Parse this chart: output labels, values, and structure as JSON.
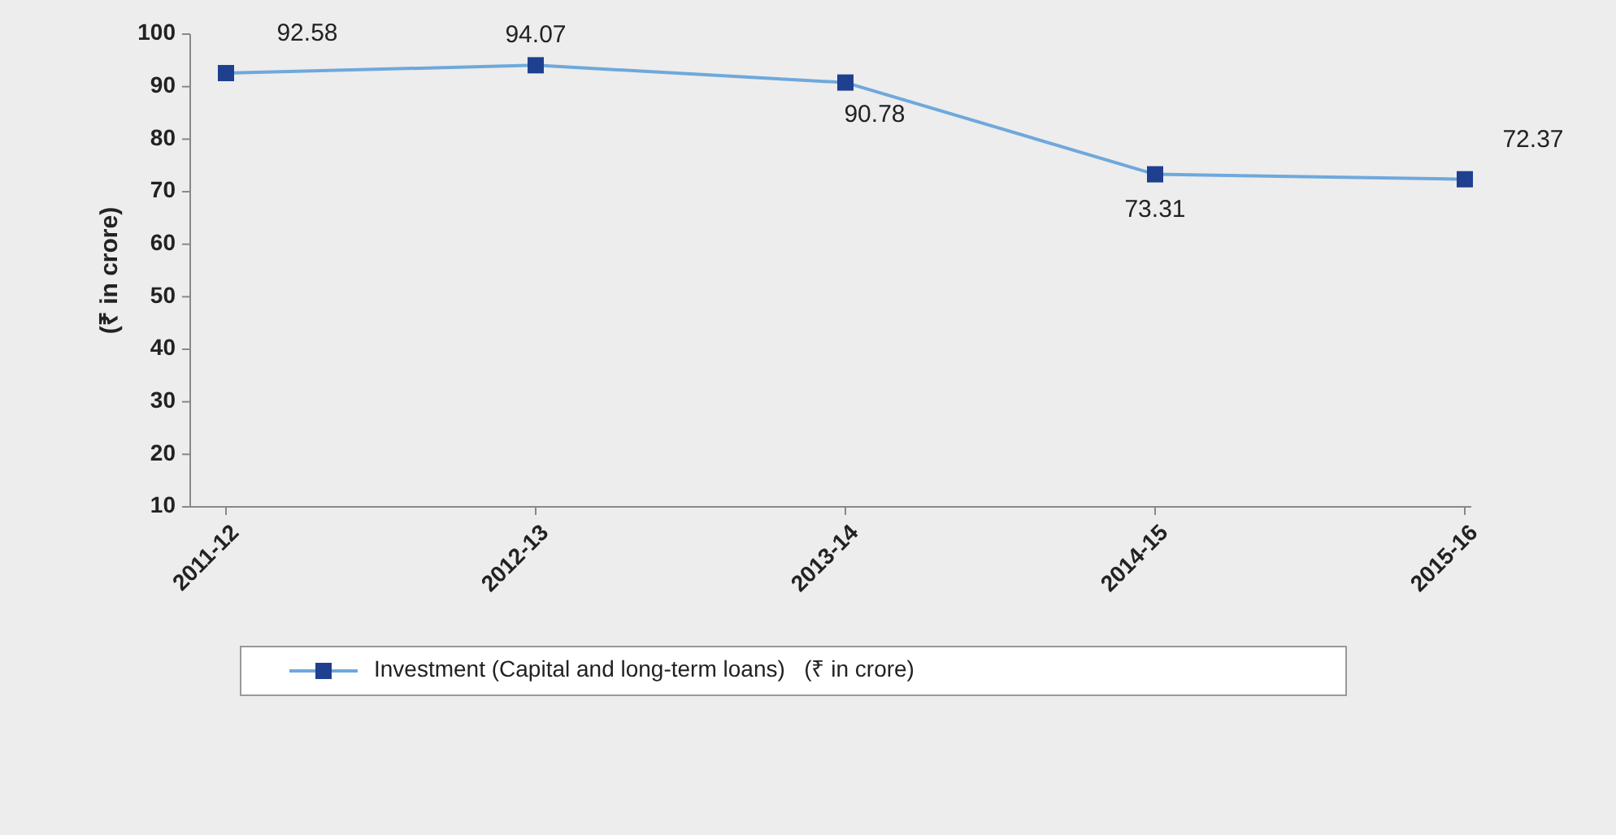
{
  "chart_data": {
    "type": "line",
    "ylabel": "(₹ in crore)",
    "categories": [
      "2011-12",
      "2012-13",
      "2013-14",
      "2014-15",
      "2015-16"
    ],
    "series": [
      {
        "name": "Investment (Capital and long-term loans)   (₹ in crore)",
        "color": "#6fa8dc",
        "values": [
          92.58,
          94.07,
          90.78,
          73.31,
          72.37
        ]
      }
    ],
    "ylim": [
      10,
      100
    ],
    "yticks": [
      10,
      20,
      30,
      40,
      50,
      60,
      70,
      80,
      90,
      100
    ],
    "data_labels": true,
    "legend": "bottom",
    "marker": "square",
    "line_style": "solid",
    "grid": false
  }
}
